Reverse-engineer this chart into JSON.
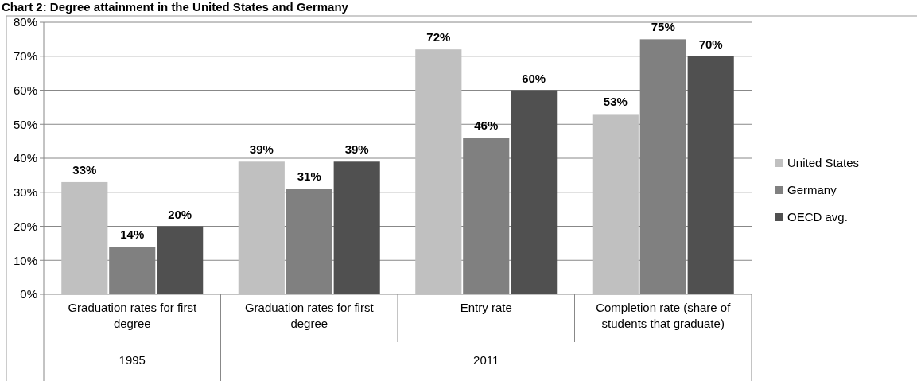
{
  "chart_data": {
    "type": "bar",
    "title": "Chart 2: Degree attainment in the United States and Germany",
    "categories": [
      "Graduation rates for first degree",
      "Graduation rates for first degree",
      "Entry rate",
      "Completion rate (share of students that graduate)"
    ],
    "series": [
      {
        "name": "United States",
        "color": "#c0c0c0",
        "values": [
          33,
          39,
          72,
          53
        ]
      },
      {
        "name": "Germany",
        "color": "#808080",
        "values": [
          14,
          31,
          46,
          75
        ]
      },
      {
        "name": "OECD avg.",
        "color": "#505050",
        "values": [
          20,
          39,
          60,
          70
        ]
      }
    ],
    "value_labels": [
      [
        "33%",
        "39%",
        "72%",
        "53%"
      ],
      [
        "14%",
        "31%",
        "46%",
        "75%"
      ],
      [
        "20%",
        "39%",
        "60%",
        "70%"
      ]
    ],
    "annotations": [
      "1995",
      "2011"
    ],
    "ylim": [
      0,
      80
    ],
    "yticks": [
      {
        "value": 0,
        "label": "0%"
      },
      {
        "value": 10,
        "label": "10%"
      },
      {
        "value": 20,
        "label": "20%"
      },
      {
        "value": 30,
        "label": "30%"
      },
      {
        "value": 40,
        "label": "40%"
      },
      {
        "value": 50,
        "label": "50%"
      },
      {
        "value": 60,
        "label": "60%"
      },
      {
        "value": 70,
        "label": "70%"
      },
      {
        "value": 80,
        "label": "80%"
      }
    ],
    "grid": "y",
    "legend": "right"
  }
}
